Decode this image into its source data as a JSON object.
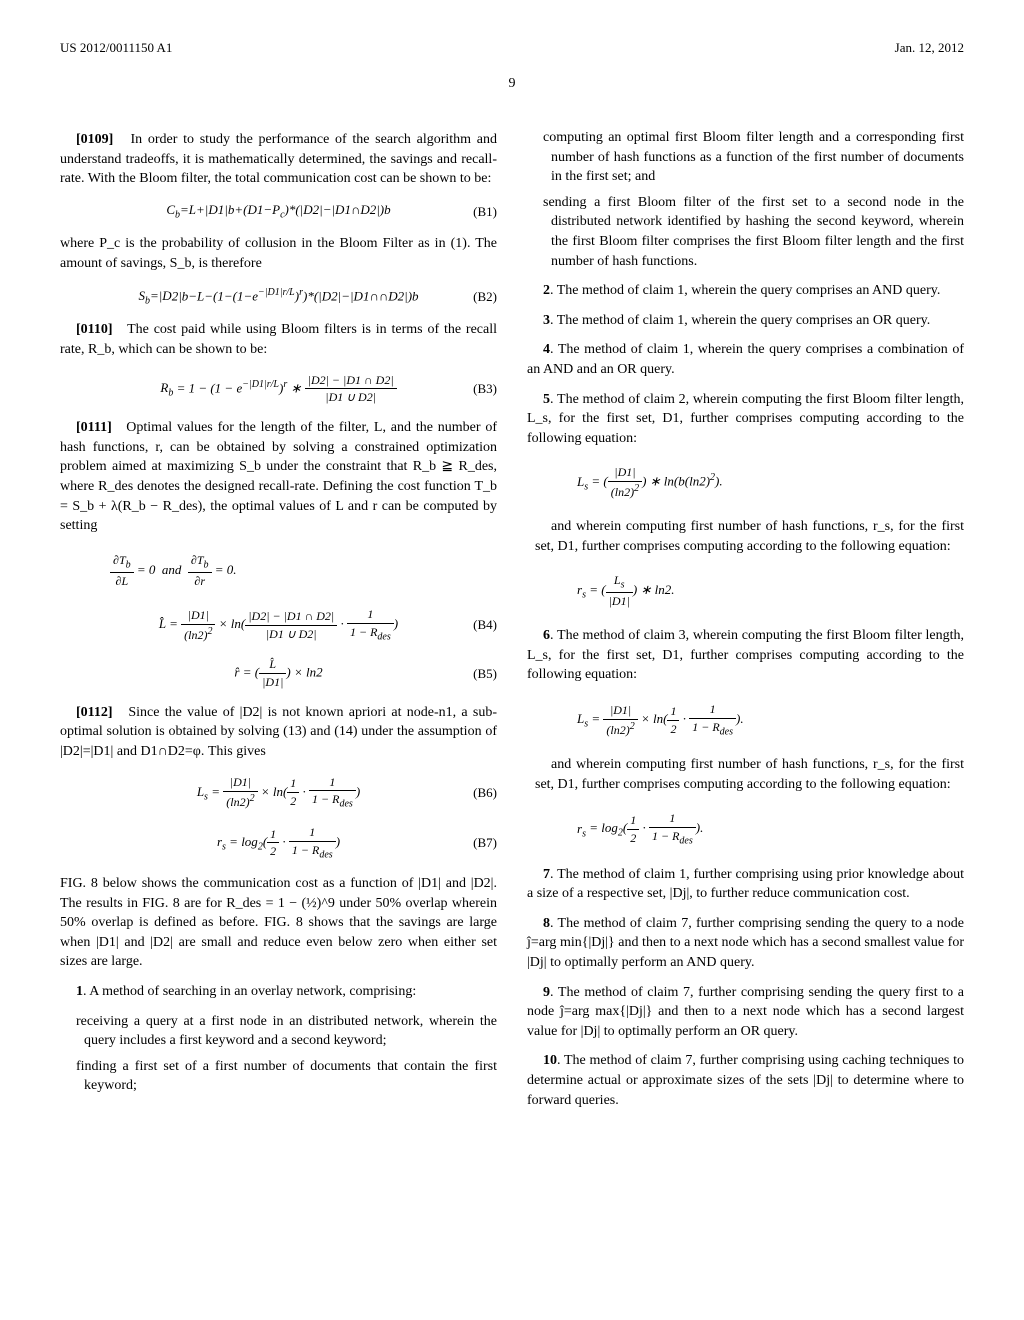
{
  "header": {
    "pub_number": "US 2012/0011150 A1",
    "pub_date": "Jan. 12, 2012"
  },
  "page_number": "9",
  "left_col": {
    "p0109": "In order to study the performance of the search algorithm and understand tradeoffs, it is mathematically determined, the savings and recall-rate. With the Bloom filter, the total communication cost can be shown to be:",
    "p0109_num": "[0109]",
    "eq_b1": "C_b = L + |D1| b + (D1 − P_c)*(|D2| − |D1∩D2|)b",
    "eq_b1_label": "(B1)",
    "p_after_b1": "where P_c is the probability of collusion in the Bloom Filter as in (1). The amount of savings, S_b, is therefore",
    "eq_b2": "S_b = |D2| b − L − (1 − (1 − e^{−|D1|r/L})^r)*(|D2| − |D1∩∩D2|)b",
    "eq_b2_label": "(B2)",
    "p0110_num": "[0110]",
    "p0110": "The cost paid while using Bloom filters is in terms of the recall rate, R_b, which can be shown to be:",
    "eq_b3_label": "(B3)",
    "p0111_num": "[0111]",
    "p0111": "Optimal values for the length of the filter, L, and the number of hash functions, r, can be obtained by solving a constrained optimization problem aimed at maximizing S_b under the constraint that R_b ≧ R_des, where R_des denotes the designed recall-rate. Defining the cost function T_b = S_b + λ(R_b − R_des), the optimal values of L and r can be computed by setting",
    "eq_b4_label": "(B4)",
    "eq_b5_label": "(B5)",
    "p0112_num": "[0112]",
    "p0112": "Since the value of |D2| is not known apriori at node-n1, a sub-optimal solution is obtained by solving (13) and (14) under the assumption of |D2|=|D1| and D1∩D2=φ. This gives",
    "eq_b6_label": "(B6)",
    "eq_b7_label": "(B7)",
    "p_fig8": "FIG. 8 below shows the communication cost as a function of |D1| and |D2|. The results in FIG. 8 are for R_des = 1 − (½)^9 under 50% overlap wherein 50% overlap is defined as before. FIG. 8 shows that the savings are large when |D1| and |D2| are small and reduce even below zero when either set sizes are large.",
    "claim1_num": "1",
    "claim1": ". A method of searching in an overlay network, comprising:",
    "claim1_sub1": "receiving a query at a first node in an distributed network, wherein the query includes a first keyword and a second keyword;",
    "claim1_sub2": "finding a first set of a first number of documents that contain the first keyword;"
  },
  "right_col": {
    "claim1_sub3": "computing an optimal first Bloom filter length and a corresponding first number of hash functions as a function of the first number of documents in the first set; and",
    "claim1_sub4": "sending a first Bloom filter of the first set to a second node in the distributed network identified by hashing the second keyword, wherein the first Bloom filter comprises the first Bloom filter length and the first number of hash functions.",
    "claim2_num": "2",
    "claim2": ". The method of claim 1, wherein the query comprises an AND query.",
    "claim3_num": "3",
    "claim3": ". The method of claim 1, wherein the query comprises an OR query.",
    "claim4_num": "4",
    "claim4": ". The method of claim 1, wherein the query comprises a combination of an AND and an OR query.",
    "claim5_num": "5",
    "claim5": ". The method of claim 2, wherein computing the first Bloom filter length, L_s, for the first set, D1, further comprises computing according to the following equation:",
    "claim5_cont": "and wherein computing first number of hash functions, r_s, for the first set, D1, further comprises computing according to the following equation:",
    "claim6_num": "6",
    "claim6": ". The method of claim 3, wherein computing the first Bloom filter length, L_s, for the first set, D1, further comprises computing according to the following equation:",
    "claim6_cont": "and wherein computing first number of hash functions, r_s, for the first set, D1, further comprises computing according to the following equation:",
    "claim7_num": "7",
    "claim7": ". The method of claim 1, further comprising using prior knowledge about a size of a respective set, |Dj|, to further reduce communication cost.",
    "claim8_num": "8",
    "claim8": ". The method of claim 7, further comprising sending the query to a node ĵ=arg min{|Dj|} and then to a next node which has a second smallest value for |Dj| to optimally perform an AND query.",
    "claim9_num": "9",
    "claim9": ". The method of claim 7, further comprising sending the query first to a node ĵ=arg max{|Dj|} and then to a next node which has a second largest value for |Dj| to optimally perform an OR query.",
    "claim10_num": "10",
    "claim10": ". The method of claim 7, further comprising using caching techniques to determine actual or approximate sizes of the sets |Dj| to determine where to forward queries."
  }
}
